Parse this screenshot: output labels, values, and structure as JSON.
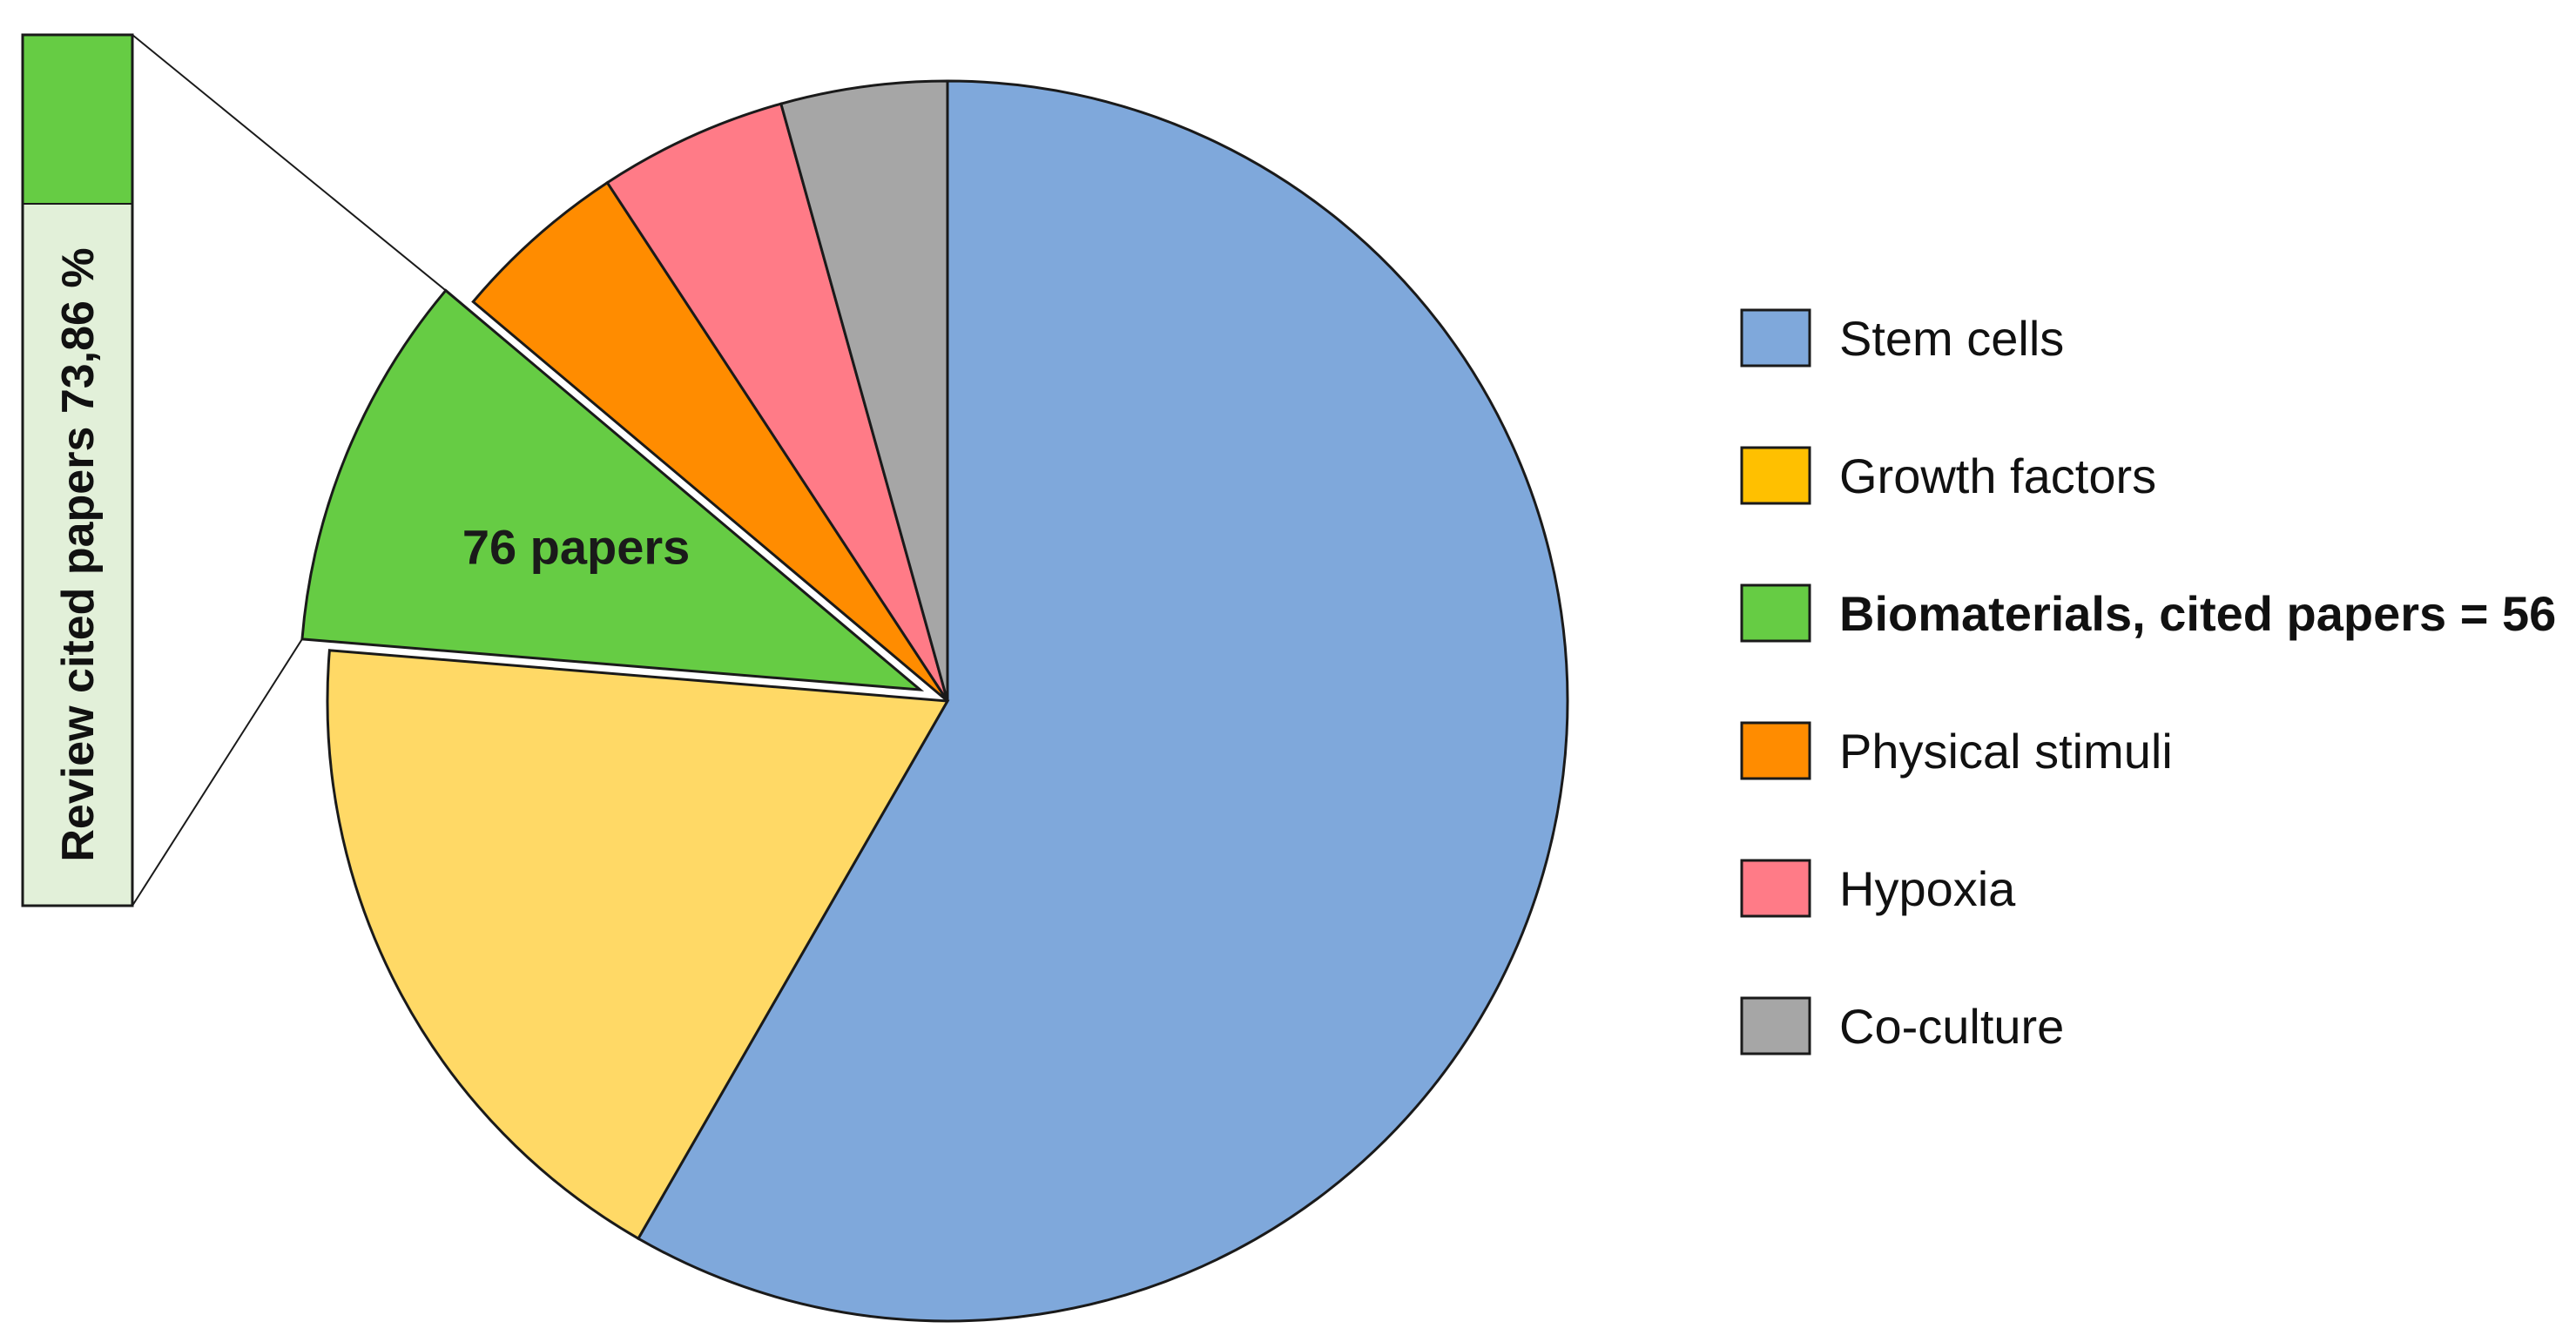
{
  "chart_data": {
    "type": "pie",
    "slices": [
      {
        "label": "Stem cells",
        "value": 59.3,
        "color": "#7FA8DB"
      },
      {
        "label": "Growth factors",
        "value": 18.3,
        "color": "#FFD966"
      },
      {
        "label": "Biomaterials, cited papers = 56",
        "value": 10.0,
        "color": "#66CC44",
        "exploded": true,
        "data_label": "76 papers"
      },
      {
        "label": "Physical stimuli",
        "value": 4.7,
        "color": "#FF8C00"
      },
      {
        "label": "Hypoxia",
        "value": 5.0,
        "color": "#FF7B87"
      },
      {
        "label": "Co-culture",
        "value": 4.4,
        "color": "#A6A6A6"
      }
    ],
    "legend": {
      "placement": "right",
      "items": [
        {
          "label": "Stem cells",
          "color": "#7FA8DB",
          "bold": false
        },
        {
          "label": "Growth factors",
          "color": "#FFC000",
          "bold": false
        },
        {
          "label": "Biomaterials, cited papers = 56",
          "color": "#66CC44",
          "bold": true
        },
        {
          "label": "Physical stimuli",
          "color": "#FF8C00",
          "bold": false
        },
        {
          "label": "Hypoxia",
          "color": "#FF7B87",
          "bold": false
        },
        {
          "label": "Co-culture",
          "color": "#A6A6A6",
          "bold": false
        }
      ]
    },
    "sub_bar": {
      "label": "Review cited papers 73,86 %",
      "fraction": 0.7386,
      "fill_color": "#66CC44",
      "remainder_color": "#E2F0D9",
      "orientation": "vertical"
    }
  }
}
